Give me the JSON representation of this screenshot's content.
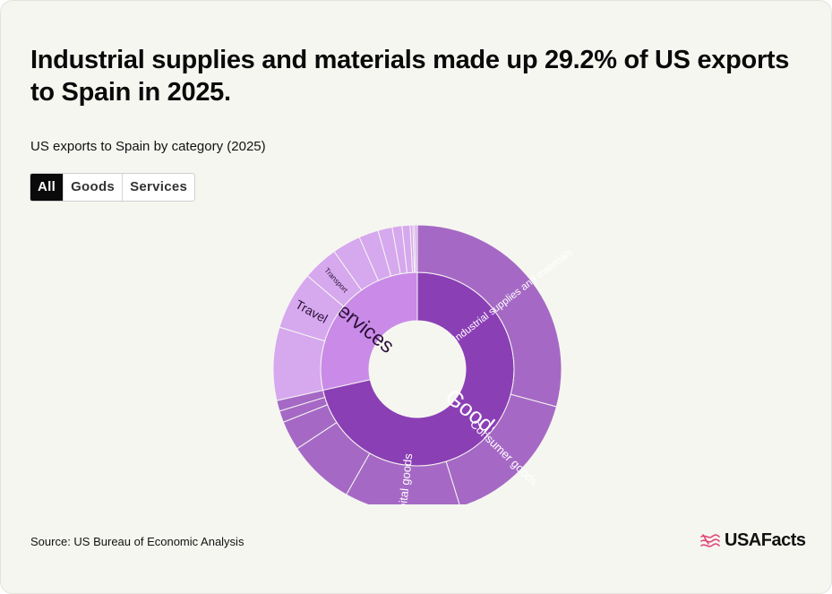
{
  "header": {
    "title": "Industrial supplies and materials made up 29.2% of US exports to Spain in 2025.",
    "subtitle": "US exports to Spain by category (2025)"
  },
  "tabs": [
    {
      "label": "All",
      "active": true
    },
    {
      "label": "Goods",
      "active": false
    },
    {
      "label": "Services",
      "active": false
    }
  ],
  "footer": {
    "source": "Source: US Bureau of Economic Analysis",
    "logo_text": "USAFacts",
    "logo_color": "#e0487a"
  },
  "colors": {
    "goods_inner": "#8b3fb5",
    "goods_outer": "#a569c5",
    "services_inner": "#c98ae8",
    "services_outer": "#d6a8ee",
    "stroke": "#f6f6f1"
  },
  "chart_data": {
    "type": "sunburst",
    "start_angle_deg": 0,
    "direction": "clockwise",
    "inner_ring": [
      {
        "label": "Goods",
        "share": 0.715
      },
      {
        "label": "Services",
        "share": 0.285
      }
    ],
    "outer_ring": [
      {
        "parent": "Goods",
        "label": "Industrial supplies and materials",
        "share": 0.292
      },
      {
        "parent": "Goods",
        "label": "Consumer goods",
        "share": 0.16
      },
      {
        "parent": "Goods",
        "label": "Capital goods",
        "share": 0.13
      },
      {
        "parent": "Goods",
        "label": "",
        "share": 0.075
      },
      {
        "parent": "Goods",
        "label": "",
        "share": 0.033
      },
      {
        "parent": "Goods",
        "label": "",
        "share": 0.013
      },
      {
        "parent": "Goods",
        "label": "",
        "share": 0.012
      },
      {
        "parent": "Services",
        "label": "",
        "share": 0.082
      },
      {
        "parent": "Services",
        "label": "Travel",
        "share": 0.065
      },
      {
        "parent": "Services",
        "label": "Transport",
        "share": 0.04
      },
      {
        "parent": "Services",
        "label": "",
        "share": 0.032
      },
      {
        "parent": "Services",
        "label": "",
        "share": 0.022
      },
      {
        "parent": "Services",
        "label": "",
        "share": 0.016
      },
      {
        "parent": "Services",
        "label": "",
        "share": 0.011
      },
      {
        "parent": "Services",
        "label": "",
        "share": 0.009
      },
      {
        "parent": "Services",
        "label": "",
        "share": 0.003
      },
      {
        "parent": "Services",
        "label": "",
        "share": 0.002
      },
      {
        "parent": "Services",
        "label": "",
        "share": 0.003
      }
    ]
  }
}
